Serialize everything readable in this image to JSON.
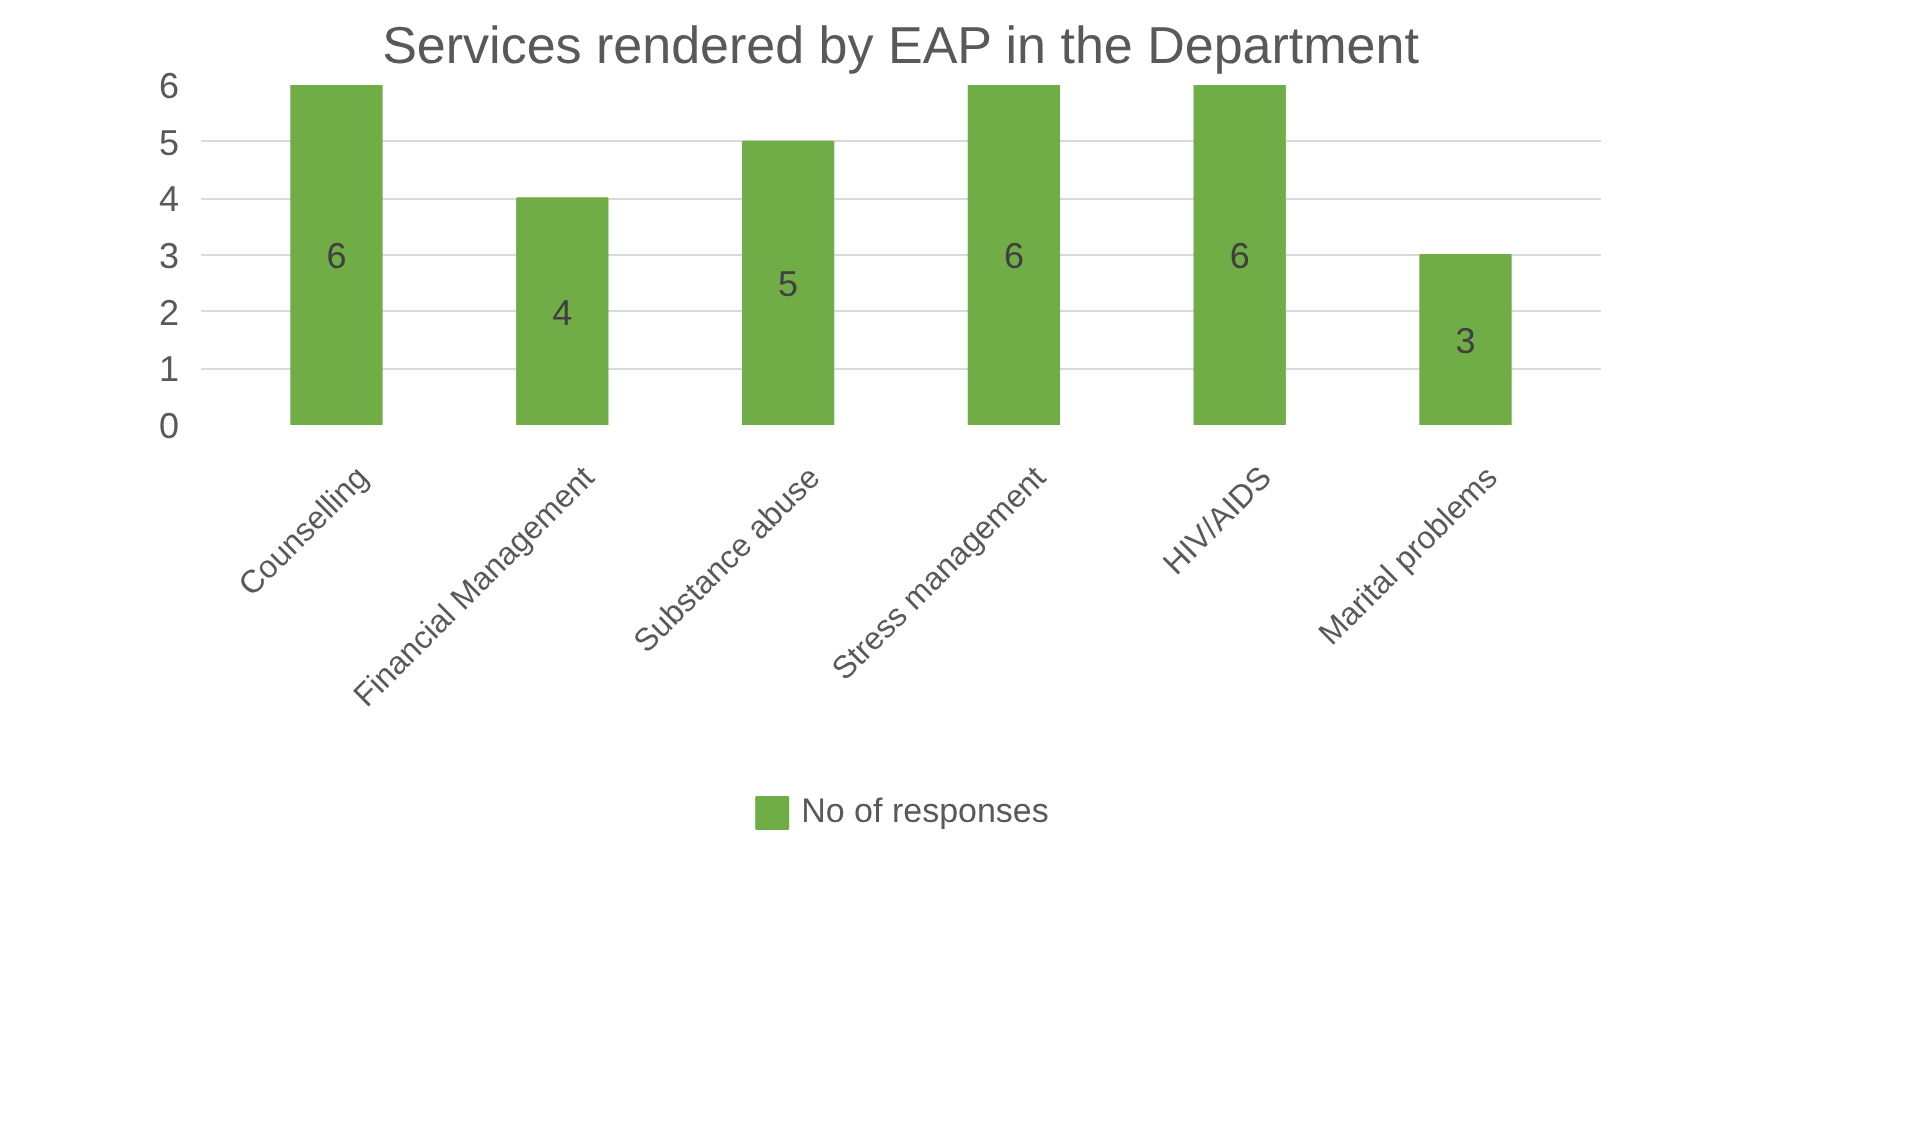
{
  "chart_data": {
    "type": "bar",
    "title": "Services rendered by EAP in the Department",
    "categories": [
      "Counselling",
      "Financial Management",
      "Substance abuse",
      "Stress management",
      "HIV/AIDS",
      "Marital problems"
    ],
    "series": [
      {
        "name": "No of responses",
        "color": "#70ad47",
        "values": [
          6,
          4,
          5,
          6,
          6,
          3
        ]
      }
    ],
    "ylim": [
      0,
      6
    ],
    "yticks": [
      0,
      1,
      2,
      3,
      4,
      5,
      6
    ],
    "grid": "y",
    "legend": "bottom",
    "data_labels": true
  }
}
